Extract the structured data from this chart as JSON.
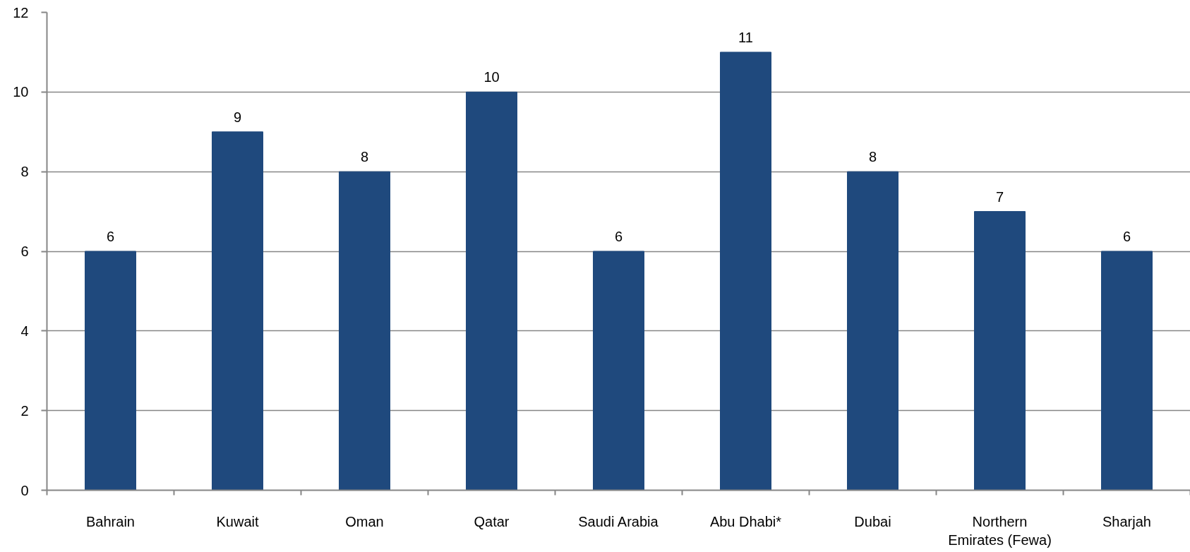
{
  "chart_data": {
    "type": "bar",
    "categories": [
      "Bahrain",
      "Kuwait",
      "Oman",
      "Qatar",
      "Saudi Arabia",
      "Abu Dhabi*",
      "Dubai",
      "Northern Emirates (Fewa)",
      "Sharjah"
    ],
    "values": [
      6,
      9,
      8,
      10,
      6,
      11,
      8,
      7,
      6
    ],
    "color": "#1f497d",
    "ylim": [
      0,
      12
    ],
    "yticks": [
      0,
      2,
      4,
      6,
      8,
      10,
      12
    ],
    "grid": "y",
    "data_labels": true
  }
}
